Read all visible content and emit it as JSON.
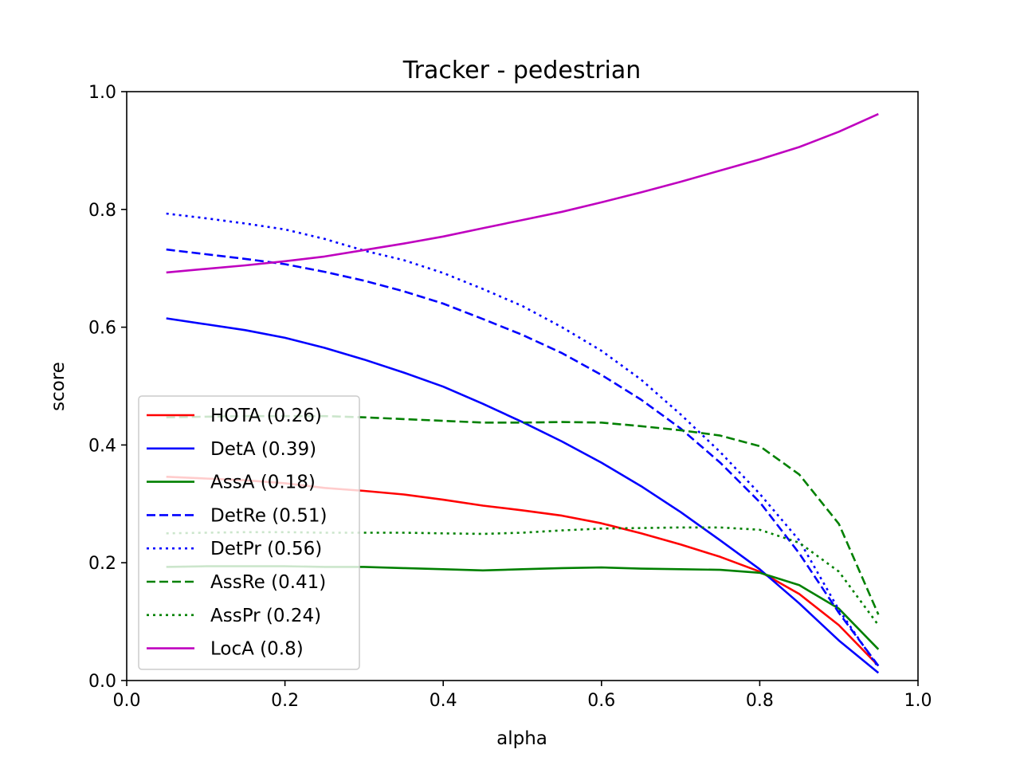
{
  "chart_data": {
    "type": "line",
    "title": "Tracker - pedestrian",
    "xlabel": "alpha",
    "ylabel": "score",
    "xlim": [
      0.0,
      1.0
    ],
    "ylim": [
      0.0,
      1.0
    ],
    "xticks": [
      "0.0",
      "0.2",
      "0.4",
      "0.6",
      "0.8",
      "1.0"
    ],
    "yticks": [
      "0.0",
      "0.2",
      "0.4",
      "0.6",
      "0.8",
      "1.0"
    ],
    "grid": false,
    "legend_position": "lower-left",
    "x": [
      0.05,
      0.1,
      0.15,
      0.2,
      0.25,
      0.3,
      0.35,
      0.4,
      0.45,
      0.5,
      0.55,
      0.6,
      0.65,
      0.7,
      0.75,
      0.8,
      0.85,
      0.9,
      0.95
    ],
    "series": [
      {
        "name": "HOTA (0.26)",
        "color": "#ff0000",
        "style": "solid",
        "values": [
          0.346,
          0.343,
          0.34,
          0.335,
          0.327,
          0.322,
          0.316,
          0.307,
          0.297,
          0.289,
          0.28,
          0.267,
          0.25,
          0.231,
          0.21,
          0.185,
          0.147,
          0.094,
          0.025
        ]
      },
      {
        "name": "DetA (0.39)",
        "color": "#0000ff",
        "style": "solid",
        "values": [
          0.615,
          0.605,
          0.595,
          0.582,
          0.565,
          0.545,
          0.523,
          0.499,
          0.47,
          0.439,
          0.406,
          0.37,
          0.33,
          0.286,
          0.238,
          0.189,
          0.131,
          0.068,
          0.013
        ]
      },
      {
        "name": "AssA (0.18)",
        "color": "#008000",
        "style": "solid",
        "values": [
          0.193,
          0.194,
          0.194,
          0.194,
          0.193,
          0.193,
          0.191,
          0.189,
          0.187,
          0.189,
          0.191,
          0.192,
          0.19,
          0.189,
          0.188,
          0.183,
          0.162,
          0.122,
          0.053
        ]
      },
      {
        "name": "DetRe (0.51)",
        "color": "#0000ff",
        "style": "dashed",
        "values": [
          0.732,
          0.724,
          0.716,
          0.707,
          0.694,
          0.679,
          0.661,
          0.64,
          0.614,
          0.587,
          0.556,
          0.519,
          0.477,
          0.428,
          0.37,
          0.303,
          0.216,
          0.115,
          0.025
        ]
      },
      {
        "name": "DetPr (0.56)",
        "color": "#0000ff",
        "style": "dotted",
        "values": [
          0.793,
          0.785,
          0.776,
          0.766,
          0.75,
          0.73,
          0.714,
          0.692,
          0.665,
          0.636,
          0.6,
          0.56,
          0.511,
          0.452,
          0.388,
          0.317,
          0.238,
          0.12,
          0.022
        ]
      },
      {
        "name": "AssRe (0.41)",
        "color": "#008000",
        "style": "dashed",
        "values": [
          0.447,
          0.448,
          0.449,
          0.449,
          0.449,
          0.447,
          0.444,
          0.441,
          0.438,
          0.438,
          0.439,
          0.438,
          0.432,
          0.425,
          0.416,
          0.398,
          0.35,
          0.266,
          0.112
        ]
      },
      {
        "name": "AssPr (0.24)",
        "color": "#008000",
        "style": "dotted",
        "values": [
          0.25,
          0.251,
          0.252,
          0.252,
          0.251,
          0.251,
          0.251,
          0.25,
          0.249,
          0.251,
          0.255,
          0.258,
          0.259,
          0.26,
          0.26,
          0.256,
          0.234,
          0.185,
          0.094
        ]
      },
      {
        "name": "LocA (0.8)",
        "color": "#bf00bf",
        "style": "solid",
        "values": [
          0.693,
          0.699,
          0.705,
          0.712,
          0.72,
          0.731,
          0.742,
          0.754,
          0.768,
          0.782,
          0.796,
          0.812,
          0.829,
          0.847,
          0.866,
          0.885,
          0.906,
          0.932,
          0.962
        ]
      }
    ]
  }
}
